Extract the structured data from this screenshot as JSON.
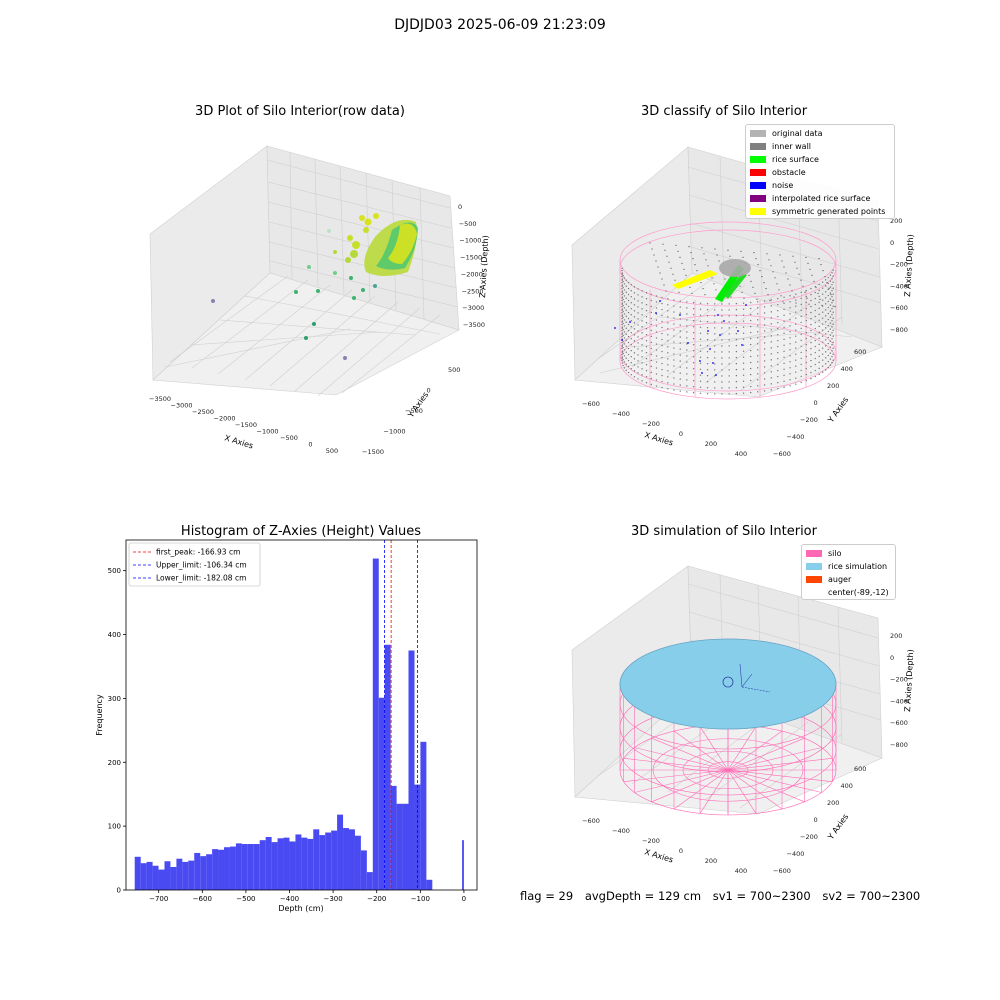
{
  "figure": {
    "suptitle": "DJDJD03 2025-06-09 21:23:09",
    "footer": {
      "flag": "flag = 29",
      "avg_depth": "avgDepth = 129 cm",
      "sv1": "sv1 = 700~2300",
      "sv2": "sv2 = 700~2300"
    }
  },
  "panels": {
    "raw": {
      "title": "3D Plot of Silo Interior(row data)",
      "xlabel": "X Axies",
      "ylabel": "Y Axies",
      "zlabel": "Z Axies (Depth)",
      "xticks": [
        "-3500",
        "-3000",
        "-2500",
        "-2000",
        "-1500",
        "-1000",
        "-500",
        "0",
        "500"
      ],
      "yticks": [
        "-1500",
        "-1000",
        "-500",
        "0",
        "500"
      ],
      "zticks": [
        "0",
        "-500",
        "-1000",
        "-1500",
        "-2000",
        "-2500",
        "-3000",
        "-3500"
      ]
    },
    "classify": {
      "title": "3D classify of Silo Interior",
      "xlabel": "X Axies",
      "ylabel": "Y Axies",
      "zlabel": "Z Axies (Depth)",
      "xticks": [
        "-600",
        "-400",
        "-200",
        "0",
        "200",
        "400"
      ],
      "yticks": [
        "-600",
        "-400",
        "-200",
        "0",
        "200",
        "400",
        "600"
      ],
      "zticks": [
        "200",
        "0",
        "-200",
        "-400",
        "-600",
        "-800"
      ],
      "legend": [
        {
          "label": "original data",
          "color": "#b3b3b3"
        },
        {
          "label": "inner wall",
          "color": "#808080"
        },
        {
          "label": "rice surface",
          "color": "#00ff00"
        },
        {
          "label": "obstacle",
          "color": "#ff0000"
        },
        {
          "label": "noise",
          "color": "#0000ff"
        },
        {
          "label": "interpolated rice surface",
          "color": "#800080"
        },
        {
          "label": "symmetric generated points",
          "color": "#ffff00"
        }
      ]
    },
    "simulation": {
      "title": "3D simulation of Silo Interior",
      "xlabel": "X Axies",
      "ylabel": "Y Axies",
      "zlabel": "Z Axies (Depth)",
      "xticks": [
        "-600",
        "-400",
        "-200",
        "0",
        "200",
        "400"
      ],
      "yticks": [
        "-600",
        "-400",
        "-200",
        "0",
        "200",
        "400",
        "600"
      ],
      "zticks": [
        "200",
        "0",
        "-200",
        "-400",
        "-600",
        "-800"
      ],
      "legend": [
        {
          "label": "silo",
          "color": "#ff69b4"
        },
        {
          "label": "rice simulation",
          "color": "#87ceeb"
        },
        {
          "label": "auger",
          "color": "#ff4500"
        },
        {
          "label": "center(-89,-12)",
          "color": ""
        }
      ]
    }
  },
  "chart_data": {
    "type": "bar",
    "title": "Histogram of Z-Axies (Height) Values",
    "xlabel": "Depth (cm)",
    "ylabel": "Frequency",
    "xlim": [
      -775,
      30
    ],
    "ylim": [
      0,
      548
    ],
    "xticks": [
      -700,
      -600,
      -500,
      -400,
      -300,
      -200,
      -100,
      0
    ],
    "yticks": [
      0,
      100,
      200,
      300,
      400,
      500
    ],
    "bar_color": "#4a4af2",
    "bins": [
      {
        "left": -755.0,
        "right": -741.3,
        "count": 52
      },
      {
        "left": -741.3,
        "right": -727.7,
        "count": 42
      },
      {
        "left": -727.7,
        "right": -714.0,
        "count": 44
      },
      {
        "left": -714.0,
        "right": -700.4,
        "count": 38
      },
      {
        "left": -700.4,
        "right": -686.7,
        "count": 32
      },
      {
        "left": -686.7,
        "right": -673.1,
        "count": 45
      },
      {
        "left": -673.1,
        "right": -659.4,
        "count": 36
      },
      {
        "left": -659.4,
        "right": -645.8,
        "count": 49
      },
      {
        "left": -645.8,
        "right": -632.1,
        "count": 44
      },
      {
        "left": -632.1,
        "right": -618.5,
        "count": 46
      },
      {
        "left": -618.5,
        "right": -604.8,
        "count": 58
      },
      {
        "left": -604.8,
        "right": -591.2,
        "count": 53
      },
      {
        "left": -591.2,
        "right": -577.5,
        "count": 56
      },
      {
        "left": -577.5,
        "right": -563.9,
        "count": 64
      },
      {
        "left": -563.9,
        "right": -550.2,
        "count": 63
      },
      {
        "left": -550.2,
        "right": -536.6,
        "count": 67
      },
      {
        "left": -536.6,
        "right": -522.9,
        "count": 68
      },
      {
        "left": -522.9,
        "right": -509.3,
        "count": 73
      },
      {
        "left": -509.3,
        "right": -495.6,
        "count": 72
      },
      {
        "left": -495.6,
        "right": -482.0,
        "count": 72
      },
      {
        "left": -482.0,
        "right": -468.3,
        "count": 72
      },
      {
        "left": -468.3,
        "right": -454.7,
        "count": 78
      },
      {
        "left": -454.7,
        "right": -441.0,
        "count": 83
      },
      {
        "left": -441.0,
        "right": -427.4,
        "count": 75
      },
      {
        "left": -427.4,
        "right": -413.7,
        "count": 81
      },
      {
        "left": -413.7,
        "right": -400.1,
        "count": 82
      },
      {
        "left": -400.1,
        "right": -386.4,
        "count": 76
      },
      {
        "left": -386.4,
        "right": -372.8,
        "count": 87
      },
      {
        "left": -372.8,
        "right": -359.1,
        "count": 82
      },
      {
        "left": -359.1,
        "right": -345.5,
        "count": 80
      },
      {
        "left": -345.5,
        "right": -331.8,
        "count": 95
      },
      {
        "left": -331.8,
        "right": -318.2,
        "count": 86
      },
      {
        "left": -318.2,
        "right": -304.5,
        "count": 90
      },
      {
        "left": -304.5,
        "right": -290.9,
        "count": 93
      },
      {
        "left": -290.9,
        "right": -277.2,
        "count": 118
      },
      {
        "left": -277.2,
        "right": -263.6,
        "count": 97
      },
      {
        "left": -263.6,
        "right": -249.9,
        "count": 95
      },
      {
        "left": -249.9,
        "right": -236.3,
        "count": 85
      },
      {
        "left": -236.3,
        "right": -222.6,
        "count": 62
      },
      {
        "left": -222.6,
        "right": -209.0,
        "count": 28
      },
      {
        "left": -209.0,
        "right": -195.3,
        "count": 519
      },
      {
        "left": -195.3,
        "right": -181.7,
        "count": 301
      },
      {
        "left": -181.7,
        "right": -168.0,
        "count": 384
      },
      {
        "left": -168.0,
        "right": -154.4,
        "count": 163
      },
      {
        "left": -154.4,
        "right": -140.7,
        "count": 135
      },
      {
        "left": -140.7,
        "right": -127.1,
        "count": 135
      },
      {
        "left": -127.1,
        "right": -113.4,
        "count": 375
      },
      {
        "left": -113.4,
        "right": -99.8,
        "count": 165
      },
      {
        "left": -99.8,
        "right": -86.1,
        "count": 232
      },
      {
        "left": -86.1,
        "right": -72.5,
        "count": 16
      },
      {
        "left": -72.5,
        "right": -58.8,
        "count": 0
      },
      {
        "left": -58.8,
        "right": -45.2,
        "count": 0
      },
      {
        "left": -45.2,
        "right": -31.5,
        "count": 0
      },
      {
        "left": -31.5,
        "right": -17.9,
        "count": 0
      },
      {
        "left": -17.9,
        "right": -4.2,
        "count": 0
      },
      {
        "left": -4.2,
        "right": 0.0,
        "count": 78
      }
    ],
    "vlines": [
      {
        "label": "first_peak: -166.93 cm",
        "x": -166.93,
        "color": "#ff0000"
      },
      {
        "label": "Upper_limit: -106.34 cm",
        "x": -106.34,
        "color": "#0000ff"
      },
      {
        "label": "Lower_limit: -182.08 cm",
        "x": -182.08,
        "color": "#0000ff"
      }
    ]
  }
}
